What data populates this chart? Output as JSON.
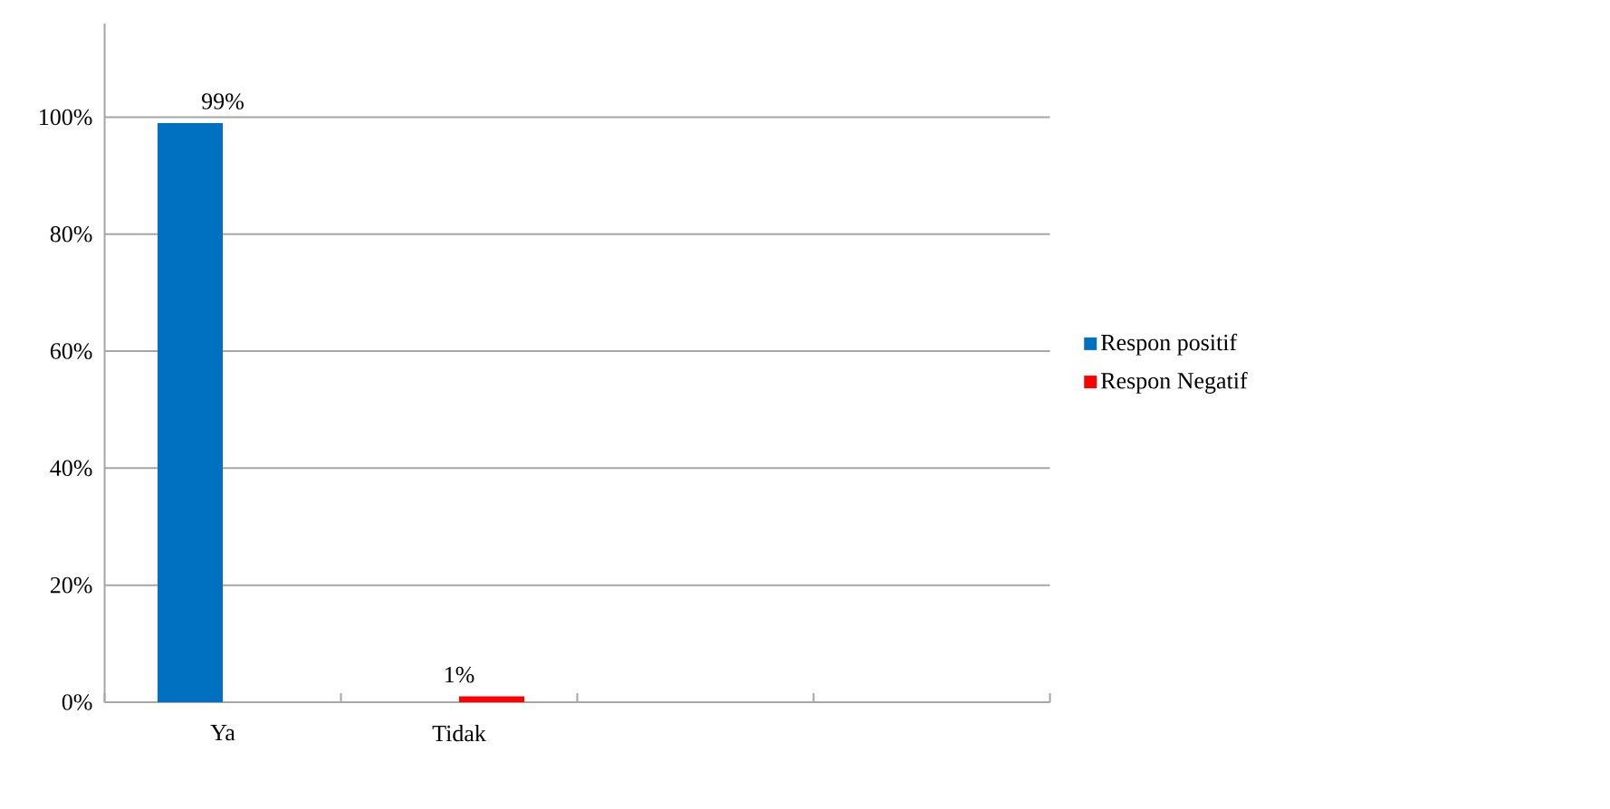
{
  "chart_data": {
    "type": "bar",
    "categories": [
      "Ya",
      "Tidak",
      null,
      null
    ],
    "series": [
      {
        "name": "Respon positif",
        "color": "#0070c0",
        "values": [
          99,
          null,
          null,
          null
        ],
        "value_labels": [
          "99%",
          null,
          null,
          null
        ]
      },
      {
        "name": "Respon Negatif",
        "color": "#ff0000",
        "values": [
          null,
          1,
          null,
          null
        ],
        "value_labels": [
          null,
          "1%",
          null,
          null
        ]
      }
    ],
    "ylim": [
      0,
      116
    ],
    "yticks": [
      {
        "value": 0,
        "label": "0%"
      },
      {
        "value": 20,
        "label": "20%"
      },
      {
        "value": 40,
        "label": "40%"
      },
      {
        "value": 60,
        "label": "60%"
      },
      {
        "value": 80,
        "label": "80%"
      },
      {
        "value": 100,
        "label": "100%"
      }
    ],
    "grid": "y",
    "legend": "right"
  }
}
